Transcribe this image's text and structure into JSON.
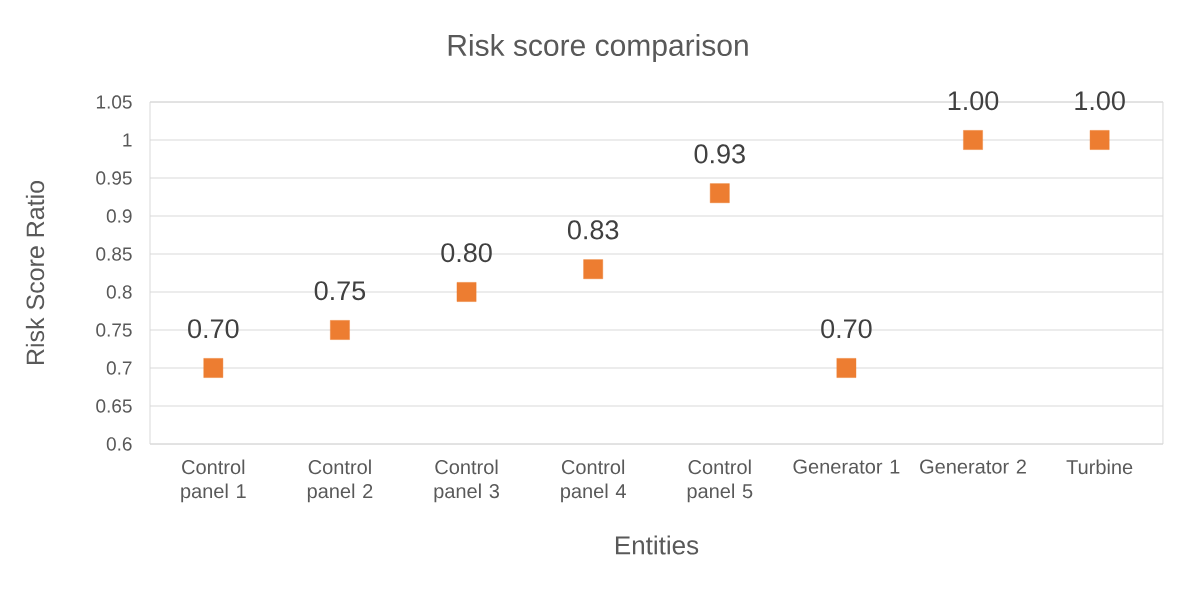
{
  "chart_data": {
    "type": "scatter",
    "title": "Risk score comparison",
    "xlabel": "Entities",
    "ylabel": "Risk Score Ratio",
    "categories": [
      "Control panel 1",
      "Control panel 2",
      "Control panel 3",
      "Control panel 4",
      "Control panel 5",
      "Generator 1",
      "Generator 2",
      "Turbine"
    ],
    "values": [
      0.7,
      0.75,
      0.8,
      0.83,
      0.93,
      0.7,
      1.0,
      1.0
    ],
    "value_labels": [
      "0.70",
      "0.75",
      "0.80",
      "0.83",
      "0.93",
      "0.70",
      "1.00",
      "1.00"
    ],
    "color": "#ed7d31",
    "marker": "square",
    "grid": "y",
    "ylim": [
      0.6,
      1.05
    ],
    "yticks": [
      0.6,
      0.65,
      0.7,
      0.75,
      0.8,
      0.85,
      0.9,
      0.95,
      1,
      1.05
    ]
  }
}
